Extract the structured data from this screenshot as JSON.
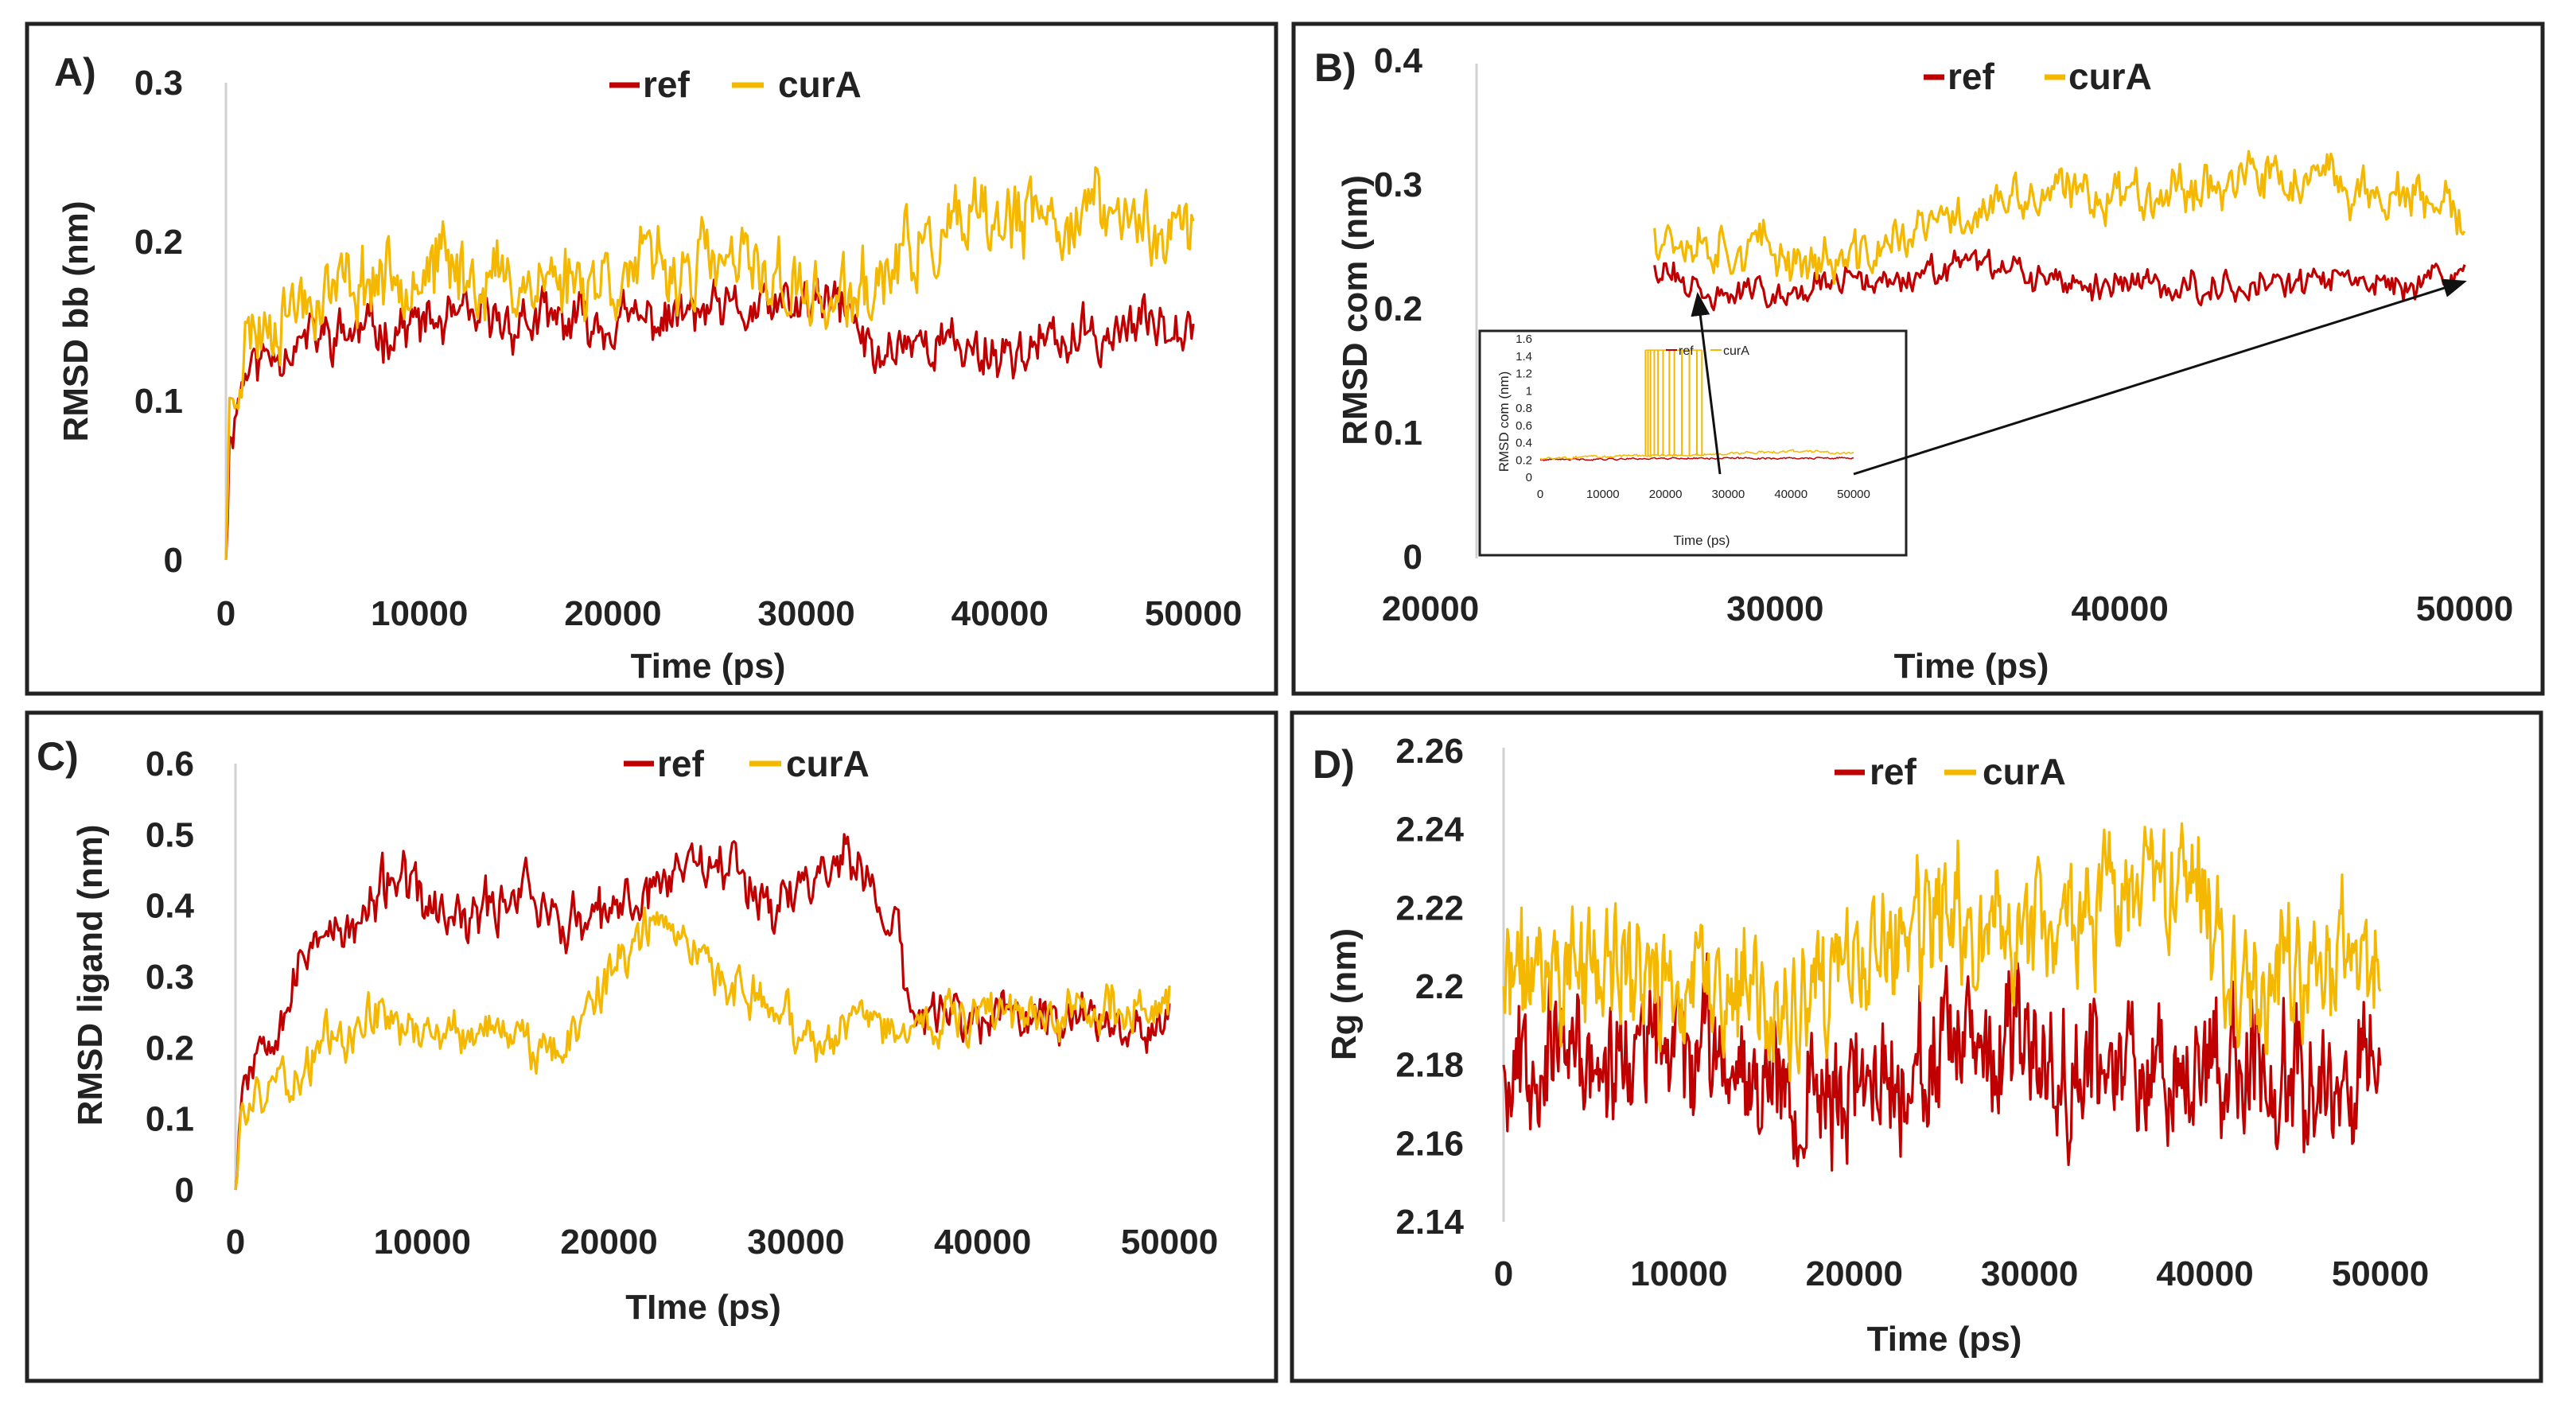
{
  "chart_data": [
    {
      "id": "A",
      "type": "line",
      "panel_label": "A)",
      "xlabel": "Time (ps)",
      "ylabel": "RMSD bb (nm)",
      "xlim": [
        0,
        50000
      ],
      "ylim": [
        0,
        0.3
      ],
      "xticks": [
        "0",
        "10000",
        "20000",
        "30000",
        "40000",
        "50000"
      ],
      "yticks": [
        "0",
        "0.1",
        "0.2",
        "0.3"
      ],
      "legend": [
        "ref",
        "curA"
      ],
      "series": [
        {
          "name": "ref",
          "color": "#c00000",
          "noise": 0.012,
          "seed": 11,
          "x": [
            0,
            200,
            1000,
            3000,
            5000,
            10000,
            15000,
            20000,
            25000,
            27000,
            30000,
            32000,
            33500,
            35000,
            40000,
            45000,
            48000,
            50000
          ],
          "y": [
            0.0,
            0.08,
            0.12,
            0.135,
            0.14,
            0.148,
            0.15,
            0.148,
            0.155,
            0.155,
            0.16,
            0.16,
            0.125,
            0.14,
            0.13,
            0.14,
            0.15,
            0.155
          ]
        },
        {
          "name": "curA",
          "color": "#f5b800",
          "noise": 0.018,
          "seed": 23,
          "x": [
            0,
            200,
            1000,
            3000,
            5000,
            10000,
            15000,
            20000,
            25000,
            28000,
            30000,
            32000,
            33500,
            35000,
            38000,
            40000,
            43000,
            45000,
            48000,
            50000
          ],
          "y": [
            0.0,
            0.1,
            0.14,
            0.16,
            0.17,
            0.185,
            0.175,
            0.18,
            0.185,
            0.18,
            0.165,
            0.16,
            0.17,
            0.19,
            0.205,
            0.21,
            0.215,
            0.22,
            0.21,
            0.205
          ]
        }
      ]
    },
    {
      "id": "B",
      "type": "line",
      "panel_label": "B)",
      "xlabel": "Time (ps)",
      "ylabel": "RMSD com (nm)",
      "xlim": [
        20000,
        50000
      ],
      "ylim": [
        0,
        0.4
      ],
      "xticks": [
        "20000",
        "30000",
        "40000",
        "50000"
      ],
      "yticks": [
        "0",
        "0.1",
        "0.2",
        "0.3",
        "0.4"
      ],
      "legend": [
        "ref",
        "curA"
      ],
      "series": [
        {
          "name": "ref",
          "color": "#c00000",
          "noise": 0.009,
          "seed": 31,
          "x": [
            26500,
            27000,
            28000,
            30000,
            32000,
            34000,
            36000,
            38000,
            40000,
            42000,
            44000,
            46000,
            48000,
            50000
          ],
          "y": [
            0.235,
            0.225,
            0.21,
            0.215,
            0.22,
            0.225,
            0.235,
            0.22,
            0.22,
            0.218,
            0.22,
            0.222,
            0.22,
            0.225
          ]
        },
        {
          "name": "curA",
          "color": "#f5b800",
          "noise": 0.015,
          "seed": 37,
          "x": [
            26500,
            28000,
            30000,
            32000,
            34000,
            36000,
            38000,
            40000,
            42000,
            44000,
            46000,
            48000,
            50000
          ],
          "y": [
            0.265,
            0.255,
            0.245,
            0.235,
            0.26,
            0.28,
            0.29,
            0.295,
            0.3,
            0.305,
            0.3,
            0.29,
            0.27
          ]
        }
      ],
      "inset": {
        "xlabel": "Time (ps)",
        "ylabel": "RMSD com (nm)",
        "xlim": [
          0,
          50000
        ],
        "ylim": [
          0,
          1.6
        ],
        "xticks": [
          "0",
          "10000",
          "20000",
          "30000",
          "40000",
          "50000"
        ],
        "yticks": [
          "0",
          "0.2",
          "0.4",
          "0.6",
          "0.8",
          "1",
          "1.2",
          "1.4",
          "1.6"
        ],
        "legend": [
          "ref",
          "curA"
        ],
        "series": [
          {
            "name": "ref",
            "color": "#c00000",
            "noise": 0.008,
            "seed": 41,
            "x": [
              0,
              10000,
              20000,
              30000,
              40000,
              50000
            ],
            "y": [
              0.2,
              0.21,
              0.22,
              0.22,
              0.22,
              0.22
            ]
          },
          {
            "name": "curA",
            "color": "#f5b800",
            "noise": 0.012,
            "seed": 43,
            "x": [
              0,
              10000,
              20000,
              30000,
              40000,
              50000
            ],
            "y": [
              0.22,
              0.24,
              0.25,
              0.27,
              0.3,
              0.28
            ]
          }
        ],
        "spikes": {
          "color": "#f5b800",
          "top": 1.47,
          "x": [
            16800,
            17200,
            17600,
            18200,
            18800,
            19600,
            20600,
            21400,
            22600,
            23800,
            25000,
            25800
          ]
        }
      }
    },
    {
      "id": "C",
      "type": "line",
      "panel_label": "C)",
      "xlabel": "TIme (ps)",
      "ylabel": "RMSD ligand (nm)",
      "xlim": [
        0,
        50000
      ],
      "ylim": [
        0,
        0.6
      ],
      "xticks": [
        "0",
        "10000",
        "20000",
        "30000",
        "40000",
        "50000"
      ],
      "yticks": [
        "0",
        "0.1",
        "0.2",
        "0.3",
        "0.4",
        "0.5",
        "0.6"
      ],
      "legend": [
        "ref",
        "curA"
      ],
      "series": [
        {
          "name": "ref",
          "color": "#c00000",
          "noise": 0.028,
          "seed": 53,
          "x": [
            0,
            300,
            1500,
            3000,
            4500,
            5500,
            7000,
            8500,
            10000,
            12000,
            14000,
            15500,
            17000,
            19000,
            21000,
            23000,
            25000,
            27000,
            29000,
            31000,
            32500,
            34000,
            35500,
            36000,
            40000,
            45000,
            50000
          ],
          "y": [
            0.0,
            0.15,
            0.22,
            0.28,
            0.38,
            0.35,
            0.38,
            0.45,
            0.4,
            0.37,
            0.4,
            0.44,
            0.38,
            0.37,
            0.4,
            0.44,
            0.48,
            0.45,
            0.4,
            0.44,
            0.48,
            0.42,
            0.36,
            0.25,
            0.24,
            0.245,
            0.24
          ]
        },
        {
          "name": "curA",
          "color": "#f5b800",
          "noise": 0.025,
          "seed": 59,
          "x": [
            0,
            300,
            1500,
            3000,
            5000,
            8000,
            10000,
            12000,
            14000,
            16000,
            18000,
            20000,
            22000,
            24000,
            26000,
            28000,
            30000,
            32000,
            35000,
            40000,
            45000,
            50000
          ],
          "y": [
            0.0,
            0.1,
            0.15,
            0.15,
            0.22,
            0.25,
            0.23,
            0.22,
            0.23,
            0.2,
            0.22,
            0.3,
            0.37,
            0.38,
            0.3,
            0.27,
            0.23,
            0.22,
            0.24,
            0.24,
            0.25,
            0.27
          ]
        }
      ]
    },
    {
      "id": "D",
      "type": "line",
      "panel_label": "D)",
      "xlabel": "Time (ps)",
      "ylabel": "Rg (nm)",
      "xlim": [
        0,
        50000
      ],
      "ylim": [
        2.14,
        2.26
      ],
      "xticks": [
        "0",
        "10000",
        "20000",
        "30000",
        "40000",
        "50000"
      ],
      "yticks": [
        "2.14",
        "2.16",
        "2.18",
        "2.2",
        "2.22",
        "2.24",
        "2.26"
      ],
      "legend": [
        "ref",
        "curA"
      ],
      "series": [
        {
          "name": "ref",
          "color": "#c00000",
          "noise": 0.012,
          "seed": 67,
          "x": [
            0,
            2000,
            5000,
            10000,
            15000,
            17000,
            20000,
            25000,
            30000,
            35000,
            40000,
            45000,
            50000
          ],
          "y": [
            2.18,
            2.185,
            2.18,
            2.185,
            2.18,
            2.17,
            2.175,
            2.18,
            2.182,
            2.18,
            2.182,
            2.178,
            2.18
          ]
        },
        {
          "name": "curA",
          "color": "#f5b800",
          "noise": 0.012,
          "seed": 71,
          "x": [
            0,
            2000,
            5000,
            10000,
            15000,
            17000,
            20000,
            25000,
            30000,
            35000,
            40000,
            41000,
            43000,
            45000,
            48000,
            50000
          ],
          "y": [
            2.2,
            2.205,
            2.205,
            2.2,
            2.195,
            2.19,
            2.205,
            2.215,
            2.215,
            2.22,
            2.225,
            2.21,
            2.2,
            2.205,
            2.21,
            2.2
          ]
        }
      ]
    }
  ]
}
